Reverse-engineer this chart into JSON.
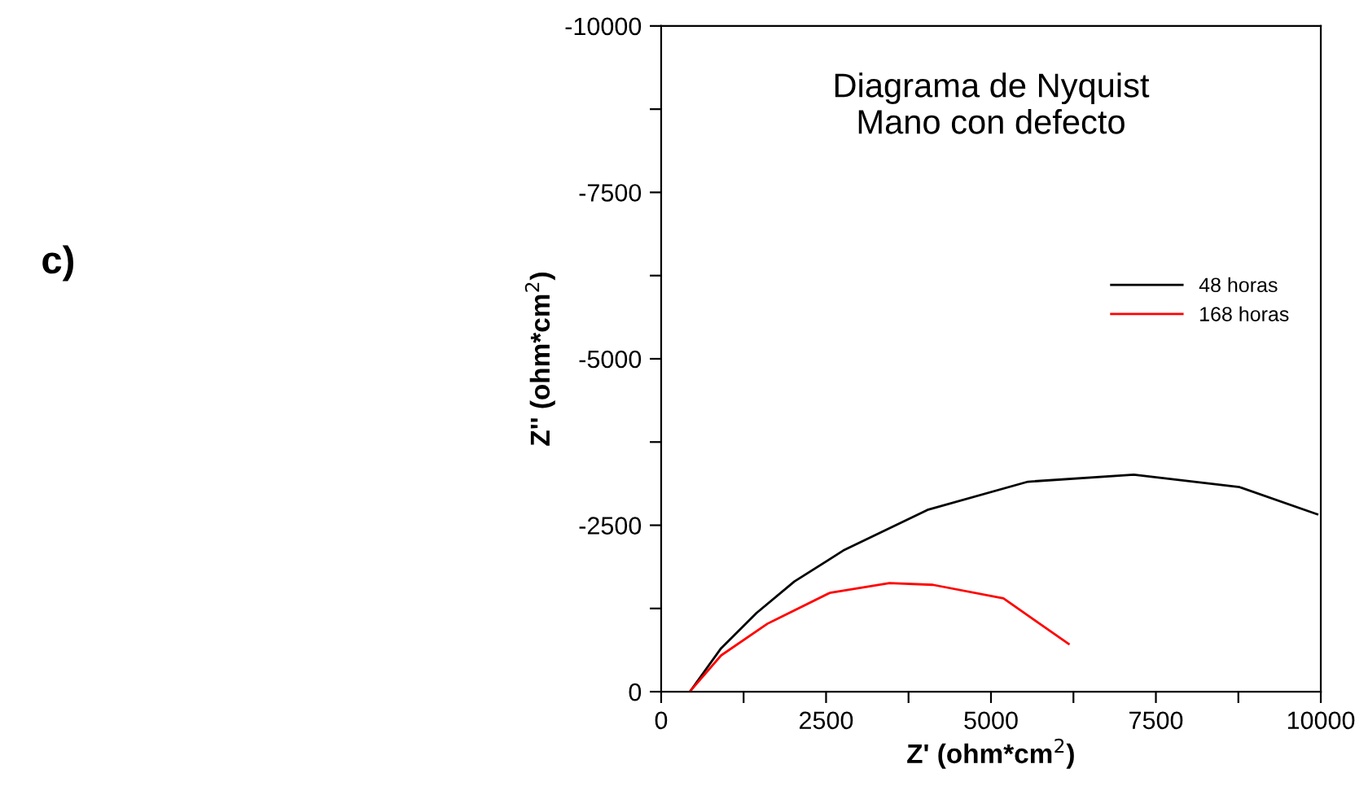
{
  "chart_data": {
    "type": "line",
    "title": "Diagrama de Nyquist\nMano con defecto",
    "xlabel": "Z' (ohm*cm$^{2}$)",
    "ylabel": "Z'' (ohm*cm$^{2}$)",
    "annotations": [
      "c)"
    ],
    "series": [
      {
        "name": "48 horas",
        "color": "#000000",
        "x": [
          450,
          909,
          1444,
          2020,
          2761,
          4037,
          5560,
          7165,
          8770,
          9946
        ],
        "values": [
          -20,
          -653,
          -1180,
          -1655,
          -2120,
          -2731,
          -3154,
          -3260,
          -3072,
          -2665
        ]
      },
      {
        "name": "168 horas",
        "color": "#ff0000",
        "x": [
          450,
          909,
          1610,
          2556,
          3461,
          4119,
          5189,
          6177
        ],
        "values": [
          -20,
          -545,
          -1020,
          -1484,
          -1630,
          -1605,
          -1401,
          -717
        ]
      }
    ],
    "xlim": [
      0,
      10000
    ],
    "ylim": [
      0,
      -10000
    ],
    "xticks": [
      0,
      {
        "value": 1250,
        "label": null
      },
      2500,
      {
        "value": 3750,
        "label": null
      },
      5000,
      {
        "value": 6250,
        "label": null
      },
      7500,
      {
        "value": 8750,
        "label": null
      },
      10000
    ],
    "yticks": [
      0,
      {
        "value": -1250,
        "label": null
      },
      -2500,
      {
        "value": -3750,
        "label": null
      },
      -5000,
      {
        "value": -6250,
        "label": null
      },
      -7500,
      {
        "value": -8750,
        "label": null
      },
      -10000
    ],
    "legend": "top right",
    "grid": false,
    "marker": "none",
    "line_style": "solid"
  }
}
